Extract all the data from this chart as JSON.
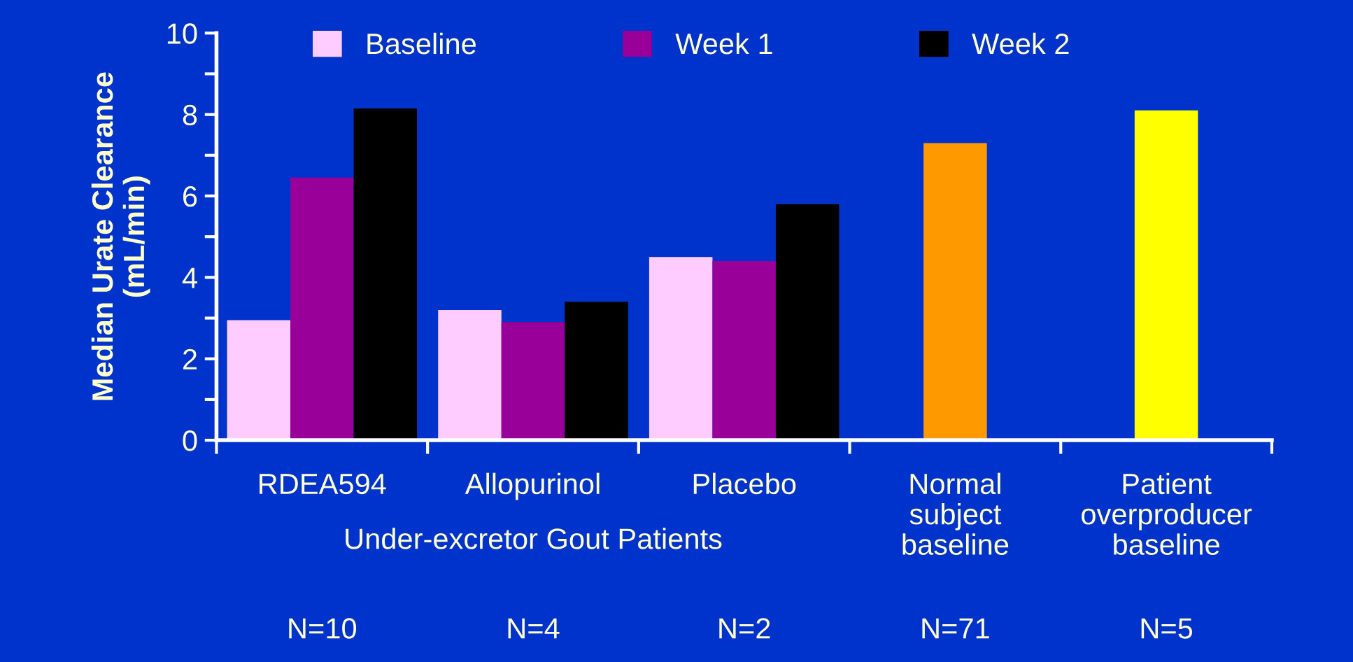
{
  "chart_data": {
    "type": "bar",
    "ylabel": "Median Urate Clearance\n(mL/min)",
    "categories": [
      "RDEA594",
      "Allopurinol",
      "Placebo",
      "Normal\nsubject\nbaseline",
      "Patient\noverproducer\nbaseline"
    ],
    "series": [
      {
        "name": "Baseline",
        "color": "#ffccff",
        "colors": [
          "#ffccff",
          "#ffccff",
          "#ffccff",
          "#ff9900",
          "#ffff00"
        ],
        "values": [
          2.95,
          3.2,
          4.5,
          7.3,
          8.1
        ]
      },
      {
        "name": "Week 1",
        "color": "#990099",
        "values": [
          6.45,
          2.9,
          4.4,
          null,
          null
        ]
      },
      {
        "name": "Week 2",
        "color": "#000000",
        "values": [
          8.15,
          3.4,
          5.8,
          null,
          null
        ]
      }
    ],
    "ylim": [
      0,
      10
    ],
    "yticks": [
      0,
      {
        "value": 1,
        "label": null
      },
      2,
      {
        "value": 3,
        "label": null
      },
      4,
      {
        "value": 5,
        "label": null
      },
      6,
      {
        "value": 7,
        "label": null
      },
      8,
      {
        "value": 9,
        "label": null
      },
      10
    ],
    "annotations": [
      "Under-excretor Gout Patients",
      "N=10",
      "N=4",
      "N=2",
      "N=71",
      "N=5"
    ],
    "legend": "top",
    "grid": false
  }
}
